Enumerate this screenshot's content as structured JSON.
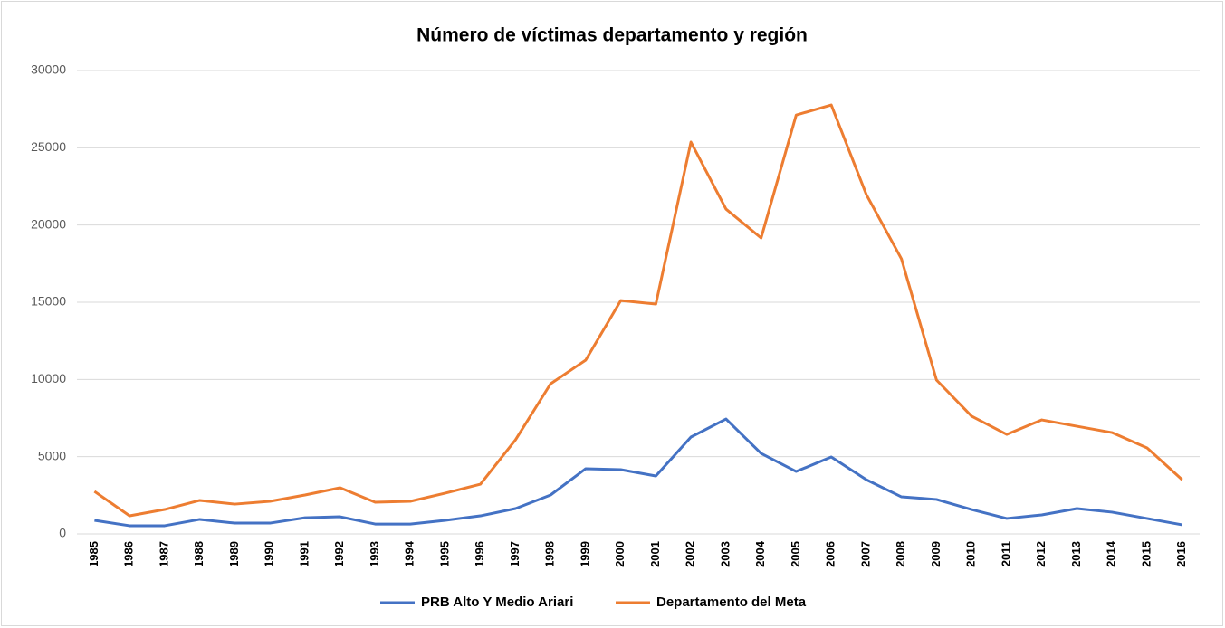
{
  "chart_data": {
    "type": "line",
    "title": "Número de víctimas departamento y región",
    "categories": [
      "1985",
      "1986",
      "1987",
      "1988",
      "1989",
      "1990",
      "1991",
      "1992",
      "1993",
      "1994",
      "1995",
      "1996",
      "1997",
      "1998",
      "1999",
      "2000",
      "2001",
      "2002",
      "2003",
      "2004",
      "2005",
      "2006",
      "2007",
      "2008",
      "2009",
      "2010",
      "2011",
      "2012",
      "2013",
      "2014",
      "2015",
      "2016"
    ],
    "series": [
      {
        "name": "PRB Alto Y Medio Ariari",
        "color": "#4472c4",
        "values": [
          880,
          530,
          530,
          940,
          700,
          700,
          1050,
          1110,
          640,
          640,
          880,
          1170,
          1640,
          2520,
          4220,
          4160,
          3750,
          6270,
          7440,
          5210,
          4040,
          4980,
          3510,
          2400,
          2230,
          1580,
          1000,
          1230,
          1640,
          1410,
          1000,
          590
        ]
      },
      {
        "name": "Departamento del Meta",
        "color": "#ed7d31",
        "values": [
          2750,
          1170,
          1580,
          2170,
          1930,
          2110,
          2520,
          2990,
          2050,
          2110,
          2640,
          3220,
          6090,
          9720,
          11250,
          15110,
          14880,
          25370,
          21030,
          19160,
          27120,
          27770,
          21970,
          17810,
          9960,
          7620,
          6440,
          7380,
          6970,
          6560,
          5570,
          3510
        ]
      }
    ],
    "ylim": [
      0,
      30000
    ],
    "yticks": [
      0,
      5000,
      10000,
      15000,
      20000,
      25000,
      30000
    ],
    "grid": true,
    "legend": "bottom"
  }
}
